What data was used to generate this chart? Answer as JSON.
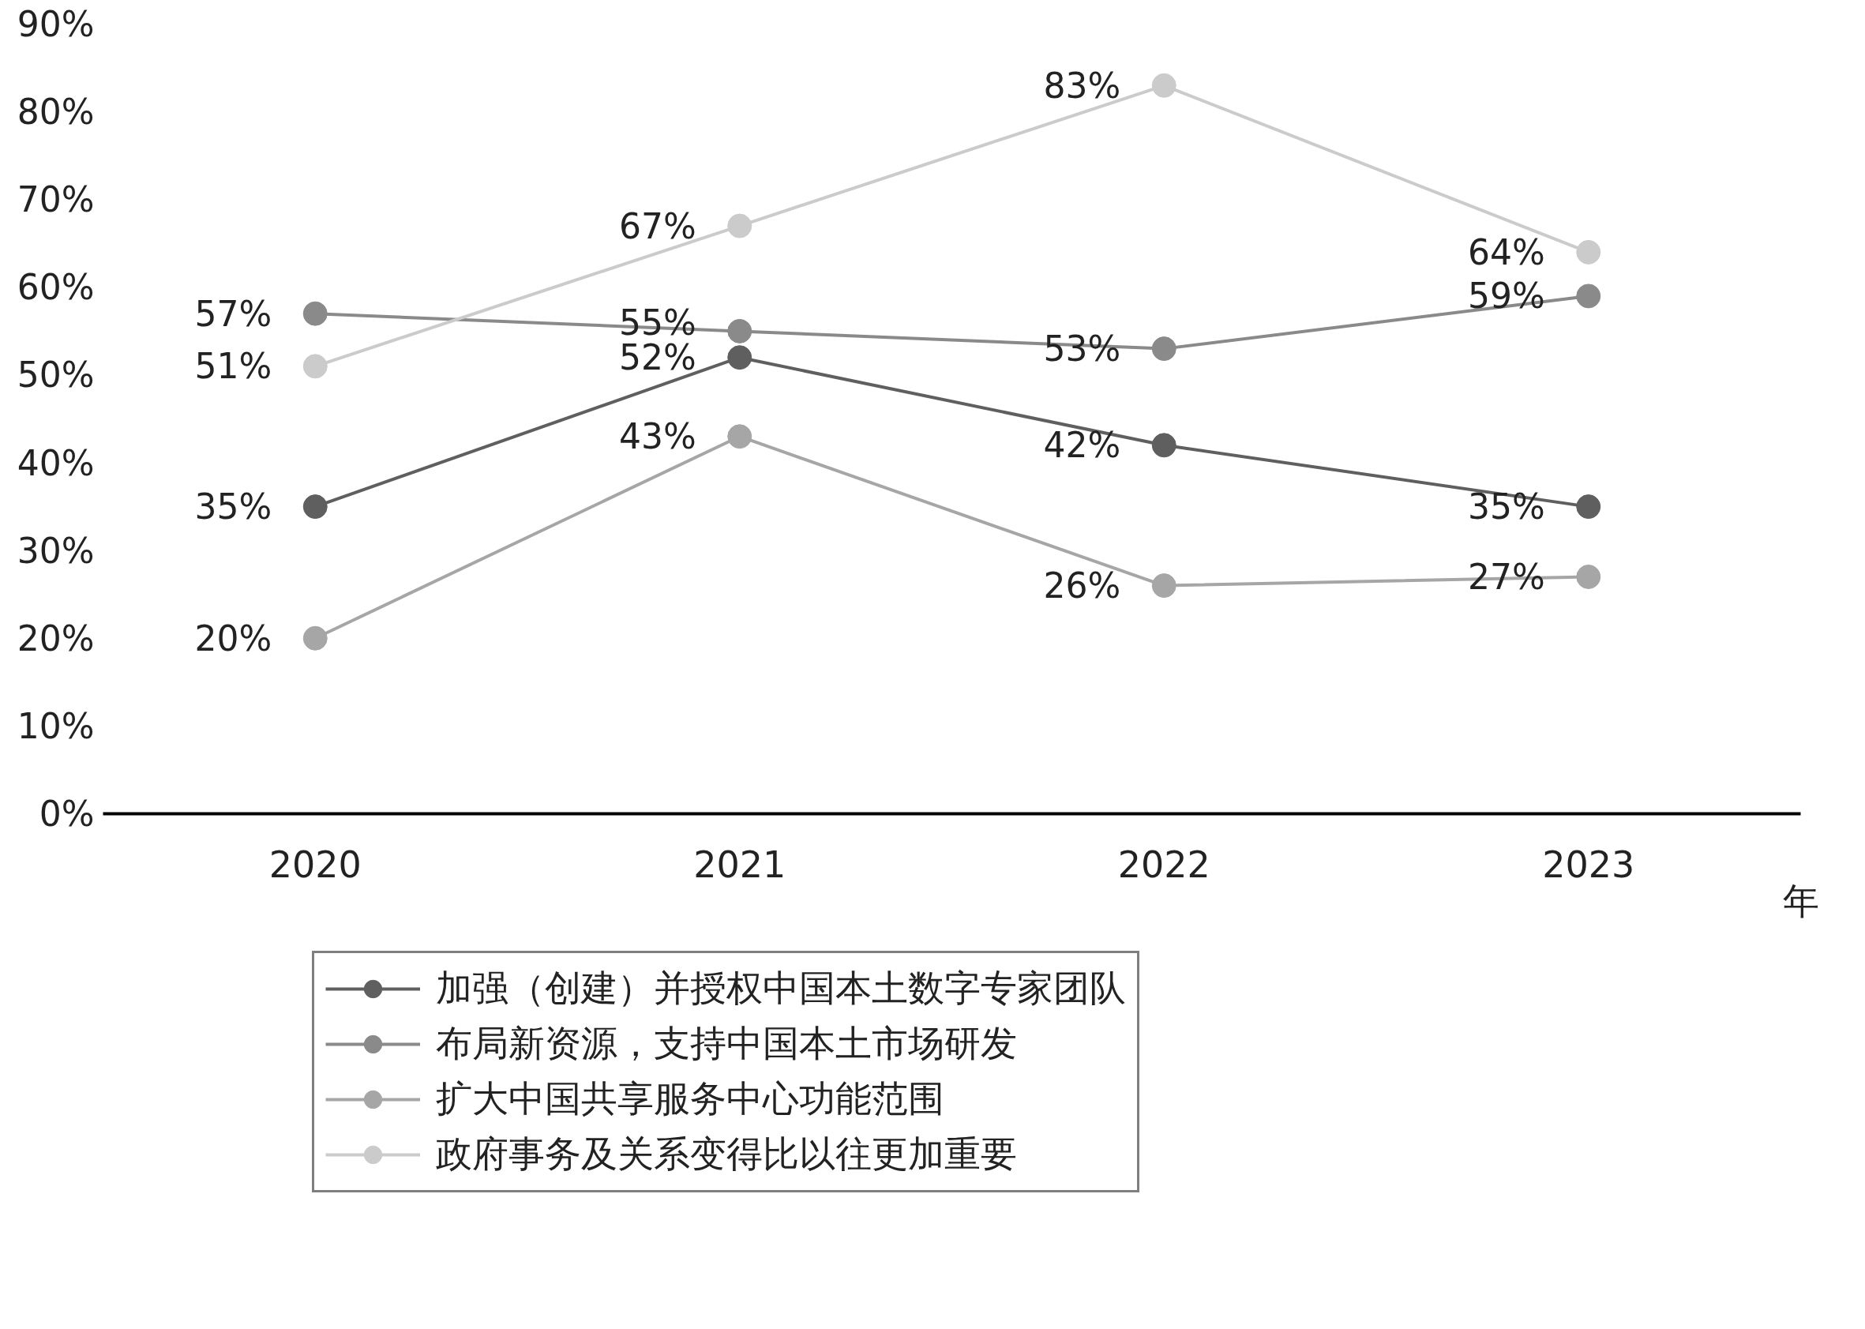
{
  "chart_data": {
    "type": "line",
    "categories": [
      "2020",
      "2021",
      "2022",
      "2023"
    ],
    "xlabel": "年",
    "ylim": [
      0,
      90
    ],
    "yticks": [
      {
        "value": 0,
        "label": "0%"
      },
      {
        "value": 10,
        "label": "10%"
      },
      {
        "value": 20,
        "label": "20%"
      },
      {
        "value": 30,
        "label": "30%"
      },
      {
        "value": 40,
        "label": "40%"
      },
      {
        "value": 50,
        "label": "50%"
      },
      {
        "value": 60,
        "label": "60%"
      },
      {
        "value": 70,
        "label": "70%"
      },
      {
        "value": 80,
        "label": "80%"
      },
      {
        "value": 90,
        "label": "90%"
      }
    ],
    "series": [
      {
        "name": "加强（创建）并授权中国本土数字专家团队",
        "color": "#5f5f5f",
        "values": [
          35,
          52,
          42,
          35
        ],
        "value_labels": [
          "35%",
          "52%",
          "42%",
          "35%"
        ]
      },
      {
        "name": "布局新资源，支持中国本土市场研发",
        "color": "#8a8a8a",
        "values": [
          57,
          55,
          53,
          59
        ],
        "value_labels": [
          "57%",
          "55%",
          "53%",
          "59%"
        ]
      },
      {
        "name": "扩大中国共享服务中心功能范围",
        "color": "#a6a6a6",
        "values": [
          20,
          43,
          26,
          27
        ],
        "value_labels": [
          "20%",
          "43%",
          "26%",
          "27%"
        ]
      },
      {
        "name": "政府事务及关系变得比以往更加重要",
        "color": "#cbcbcb",
        "values": [
          51,
          67,
          83,
          64
        ],
        "value_labels": [
          "51%",
          "67%",
          "83%",
          "64%"
        ]
      }
    ],
    "marker": "circle",
    "line_style": "solid",
    "grid": false,
    "legend": "bottom"
  }
}
